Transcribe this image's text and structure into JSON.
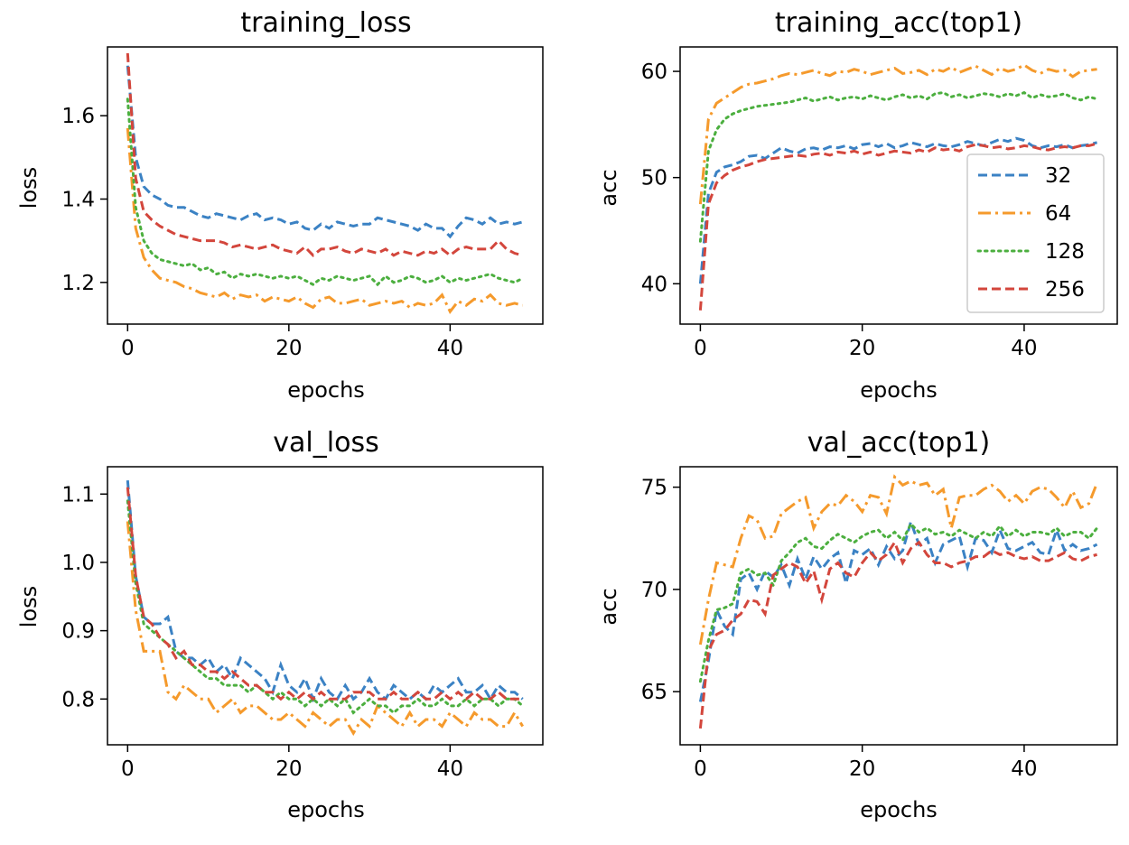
{
  "colors": {
    "32": "#3b82c4",
    "64": "#f59a2c",
    "128": "#4caf3f",
    "256": "#d3463c"
  },
  "chart_data": [
    {
      "type": "line",
      "title": "training_loss",
      "xlabel": "epochs",
      "ylabel": "loss",
      "xlim": [
        -2.5,
        51.5
      ],
      "ylim": [
        1.1,
        1.765
      ],
      "xticks": [
        0,
        20,
        40
      ],
      "yticks": [
        1.2,
        1.4,
        1.6
      ],
      "ytick_labels": [
        "1.2",
        "1.4",
        "1.6"
      ],
      "series": [
        {
          "key": "32",
          "style": "dashed",
          "values": [
            1.72,
            1.5,
            1.43,
            1.41,
            1.4,
            1.385,
            1.38,
            1.38,
            1.37,
            1.36,
            1.355,
            1.365,
            1.36,
            1.355,
            1.35,
            1.36,
            1.365,
            1.35,
            1.355,
            1.35,
            1.34,
            1.345,
            1.33,
            1.325,
            1.34,
            1.33,
            1.345,
            1.34,
            1.335,
            1.34,
            1.34,
            1.355,
            1.35,
            1.345,
            1.34,
            1.335,
            1.325,
            1.34,
            1.33,
            1.33,
            1.31,
            1.335,
            1.355,
            1.35,
            1.34,
            1.355,
            1.34,
            1.345,
            1.34,
            1.345
          ]
        },
        {
          "key": "64",
          "style": "dashdot",
          "values": [
            1.57,
            1.33,
            1.26,
            1.23,
            1.21,
            1.205,
            1.2,
            1.19,
            1.185,
            1.175,
            1.17,
            1.165,
            1.175,
            1.16,
            1.17,
            1.165,
            1.17,
            1.155,
            1.165,
            1.16,
            1.155,
            1.165,
            1.15,
            1.14,
            1.16,
            1.165,
            1.15,
            1.15,
            1.155,
            1.16,
            1.145,
            1.15,
            1.155,
            1.15,
            1.155,
            1.14,
            1.15,
            1.145,
            1.15,
            1.17,
            1.13,
            1.155,
            1.145,
            1.16,
            1.155,
            1.17,
            1.15,
            1.145,
            1.15,
            1.145
          ]
        },
        {
          "key": "128",
          "style": "dotted",
          "values": [
            1.64,
            1.38,
            1.3,
            1.27,
            1.255,
            1.25,
            1.245,
            1.24,
            1.245,
            1.23,
            1.235,
            1.22,
            1.225,
            1.21,
            1.22,
            1.215,
            1.22,
            1.215,
            1.21,
            1.215,
            1.21,
            1.215,
            1.205,
            1.195,
            1.21,
            1.205,
            1.215,
            1.21,
            1.205,
            1.21,
            1.215,
            1.195,
            1.215,
            1.2,
            1.205,
            1.215,
            1.21,
            1.2,
            1.205,
            1.215,
            1.2,
            1.21,
            1.205,
            1.21,
            1.215,
            1.22,
            1.21,
            1.205,
            1.2,
            1.21
          ]
        },
        {
          "key": "256",
          "style": "dashed",
          "values": [
            1.75,
            1.45,
            1.37,
            1.35,
            1.335,
            1.325,
            1.315,
            1.31,
            1.305,
            1.3,
            1.3,
            1.3,
            1.295,
            1.285,
            1.29,
            1.285,
            1.28,
            1.285,
            1.29,
            1.28,
            1.275,
            1.27,
            1.285,
            1.265,
            1.28,
            1.28,
            1.285,
            1.275,
            1.27,
            1.28,
            1.275,
            1.27,
            1.28,
            1.265,
            1.275,
            1.27,
            1.265,
            1.275,
            1.27,
            1.28,
            1.265,
            1.28,
            1.285,
            1.28,
            1.28,
            1.28,
            1.3,
            1.28,
            1.27,
            1.265
          ]
        }
      ]
    },
    {
      "type": "line",
      "title": "training_acc(top1)",
      "xlabel": "epochs",
      "ylabel": "acc",
      "xlim": [
        -2.5,
        51.5
      ],
      "ylim": [
        36.2,
        62.3
      ],
      "xticks": [
        0,
        20,
        40
      ],
      "yticks": [
        40,
        50,
        60
      ],
      "ytick_labels": [
        "40",
        "50",
        "60"
      ],
      "legend": {
        "position": "right",
        "entries": [
          "32",
          "64",
          "128",
          "256"
        ]
      },
      "series": [
        {
          "key": "32",
          "style": "dashed",
          "values": [
            40.0,
            48.5,
            50.5,
            51.0,
            51.2,
            51.5,
            52.0,
            52.1,
            51.8,
            52.3,
            52.8,
            52.5,
            52.3,
            52.7,
            52.8,
            52.6,
            52.9,
            52.8,
            53.0,
            52.7,
            53.1,
            53.2,
            52.9,
            53.2,
            52.8,
            53.0,
            53.3,
            53.1,
            52.9,
            53.2,
            53.0,
            52.9,
            53.1,
            53.4,
            53.2,
            53.0,
            53.3,
            53.6,
            53.4,
            53.7,
            53.5,
            53.0,
            52.8,
            53.0,
            52.9,
            53.1,
            52.8,
            53.0,
            53.1,
            53.3
          ]
        },
        {
          "key": "64",
          "style": "dashdot",
          "values": [
            47.5,
            55.5,
            57.0,
            57.5,
            58.0,
            58.5,
            58.8,
            58.9,
            59.1,
            59.3,
            59.6,
            59.8,
            59.7,
            59.9,
            60.1,
            59.8,
            59.6,
            60.0,
            59.9,
            60.2,
            60.0,
            59.7,
            59.9,
            60.1,
            60.3,
            59.8,
            59.9,
            60.1,
            59.7,
            60.2,
            60.0,
            60.4,
            59.9,
            60.2,
            60.5,
            60.1,
            59.7,
            60.3,
            60.0,
            60.2,
            60.6,
            60.1,
            59.8,
            60.2,
            60.0,
            60.1,
            59.5,
            60.0,
            60.1,
            60.2
          ]
        },
        {
          "key": "128",
          "style": "dotted",
          "values": [
            44.0,
            52.5,
            54.5,
            55.5,
            56.0,
            56.3,
            56.5,
            56.7,
            56.8,
            56.9,
            57.0,
            57.1,
            57.3,
            57.5,
            57.2,
            57.4,
            57.6,
            57.3,
            57.5,
            57.6,
            57.4,
            57.7,
            57.5,
            57.3,
            57.6,
            57.8,
            57.5,
            57.7,
            57.4,
            57.9,
            58.0,
            57.6,
            57.8,
            57.5,
            57.7,
            57.9,
            57.8,
            57.6,
            57.9,
            57.7,
            58.0,
            57.5,
            57.8,
            57.6,
            57.7,
            57.9,
            57.5,
            57.3,
            57.6,
            57.4
          ]
        },
        {
          "key": "256",
          "style": "dashed",
          "values": [
            37.5,
            47.5,
            49.5,
            50.2,
            50.7,
            51.0,
            51.2,
            51.5,
            51.7,
            51.8,
            51.9,
            52.0,
            52.1,
            52.0,
            52.2,
            52.3,
            52.1,
            52.4,
            52.3,
            52.5,
            52.2,
            52.4,
            52.1,
            52.3,
            52.5,
            52.4,
            52.3,
            52.6,
            52.4,
            52.8,
            52.6,
            52.7,
            52.5,
            52.9,
            53.1,
            53.0,
            52.8,
            52.9,
            52.7,
            52.8,
            53.0,
            52.9,
            52.7,
            52.6,
            52.8,
            52.9,
            52.8,
            53.0,
            53.0,
            53.2
          ]
        }
      ]
    },
    {
      "type": "line",
      "title": "val_loss",
      "xlabel": "epochs",
      "ylabel": "loss",
      "xlim": [
        -2.5,
        51.5
      ],
      "ylim": [
        0.733,
        1.14
      ],
      "xticks": [
        0,
        20,
        40
      ],
      "yticks": [
        0.8,
        0.9,
        1.0,
        1.1
      ],
      "ytick_labels": [
        "0.8",
        "0.9",
        "1.0",
        "1.1"
      ],
      "series": [
        {
          "key": "32",
          "style": "dashed",
          "values": [
            1.12,
            0.98,
            0.92,
            0.91,
            0.91,
            0.92,
            0.87,
            0.86,
            0.86,
            0.85,
            0.86,
            0.84,
            0.85,
            0.83,
            0.86,
            0.85,
            0.84,
            0.83,
            0.81,
            0.85,
            0.82,
            0.81,
            0.83,
            0.8,
            0.83,
            0.81,
            0.8,
            0.82,
            0.8,
            0.81,
            0.83,
            0.81,
            0.8,
            0.82,
            0.81,
            0.8,
            0.81,
            0.8,
            0.82,
            0.81,
            0.82,
            0.83,
            0.81,
            0.81,
            0.82,
            0.8,
            0.82,
            0.81,
            0.81,
            0.8
          ]
        },
        {
          "key": "64",
          "style": "dashdot",
          "values": [
            1.06,
            0.93,
            0.87,
            0.87,
            0.87,
            0.81,
            0.8,
            0.82,
            0.81,
            0.8,
            0.8,
            0.78,
            0.79,
            0.8,
            0.78,
            0.79,
            0.79,
            0.78,
            0.77,
            0.77,
            0.78,
            0.77,
            0.76,
            0.78,
            0.77,
            0.76,
            0.77,
            0.77,
            0.75,
            0.77,
            0.76,
            0.79,
            0.78,
            0.77,
            0.76,
            0.78,
            0.76,
            0.77,
            0.77,
            0.76,
            0.78,
            0.77,
            0.76,
            0.78,
            0.77,
            0.77,
            0.76,
            0.76,
            0.78,
            0.76
          ]
        },
        {
          "key": "128",
          "style": "dotted",
          "values": [
            1.09,
            0.97,
            0.91,
            0.9,
            0.89,
            0.88,
            0.87,
            0.86,
            0.85,
            0.84,
            0.83,
            0.83,
            0.82,
            0.82,
            0.82,
            0.81,
            0.82,
            0.81,
            0.8,
            0.81,
            0.8,
            0.8,
            0.79,
            0.8,
            0.79,
            0.8,
            0.79,
            0.8,
            0.78,
            0.79,
            0.8,
            0.79,
            0.79,
            0.78,
            0.79,
            0.79,
            0.8,
            0.79,
            0.79,
            0.8,
            0.79,
            0.79,
            0.8,
            0.79,
            0.8,
            0.8,
            0.79,
            0.8,
            0.8,
            0.79
          ]
        },
        {
          "key": "256",
          "style": "dashed",
          "values": [
            1.11,
            0.98,
            0.92,
            0.91,
            0.89,
            0.88,
            0.86,
            0.87,
            0.85,
            0.85,
            0.84,
            0.84,
            0.83,
            0.84,
            0.83,
            0.82,
            0.82,
            0.81,
            0.81,
            0.8,
            0.81,
            0.8,
            0.81,
            0.8,
            0.81,
            0.8,
            0.8,
            0.8,
            0.81,
            0.81,
            0.81,
            0.8,
            0.8,
            0.81,
            0.8,
            0.8,
            0.81,
            0.8,
            0.8,
            0.81,
            0.8,
            0.81,
            0.8,
            0.81,
            0.8,
            0.8,
            0.81,
            0.8,
            0.8,
            0.8
          ]
        }
      ]
    },
    {
      "type": "line",
      "title": "val_acc(top1)",
      "xlabel": "epochs",
      "ylabel": "acc",
      "xlim": [
        -2.5,
        51.5
      ],
      "ylim": [
        62.4,
        76.0
      ],
      "xticks": [
        0,
        20,
        40
      ],
      "yticks": [
        65,
        70,
        75
      ],
      "ytick_labels": [
        "65",
        "70",
        "75"
      ],
      "series": [
        {
          "key": "32",
          "style": "dashed",
          "values": [
            64.5,
            66.5,
            69.0,
            68.2,
            67.8,
            70.5,
            70.8,
            70.0,
            70.9,
            70.6,
            71.2,
            70.2,
            71.5,
            70.5,
            71.6,
            71.0,
            71.5,
            71.8,
            70.3,
            71.9,
            71.7,
            72.0,
            71.2,
            72.1,
            71.5,
            71.9,
            73.3,
            72.2,
            72.5,
            71.3,
            72.2,
            72.4,
            72.6,
            71.1,
            72.5,
            72.4,
            71.8,
            72.9,
            72.0,
            71.9,
            72.1,
            72.3,
            71.8,
            71.7,
            72.9,
            71.9,
            72.2,
            71.9,
            72.0,
            72.2
          ]
        },
        {
          "key": "64",
          "style": "dashdot",
          "values": [
            67.3,
            69.5,
            71.3,
            71.2,
            71.1,
            72.5,
            73.6,
            73.4,
            72.5,
            72.6,
            73.7,
            74.0,
            74.3,
            74.5,
            73.0,
            73.8,
            74.2,
            74.1,
            74.6,
            74.3,
            73.8,
            74.6,
            74.5,
            73.7,
            75.5,
            75.1,
            75.3,
            75.1,
            75.2,
            74.6,
            74.9,
            73.0,
            74.5,
            74.6,
            74.6,
            74.9,
            75.1,
            74.8,
            74.3,
            74.6,
            74.2,
            74.8,
            75.0,
            74.9,
            74.5,
            74.0,
            74.8,
            74.0,
            74.2,
            75.2
          ]
        },
        {
          "key": "128",
          "style": "dotted",
          "values": [
            65.5,
            67.5,
            69.0,
            69.1,
            69.3,
            70.8,
            71.0,
            70.7,
            70.8,
            70.2,
            71.4,
            71.8,
            72.3,
            72.5,
            72.1,
            72.0,
            72.4,
            72.7,
            72.5,
            72.3,
            72.6,
            72.8,
            72.9,
            72.5,
            72.8,
            72.4,
            73.2,
            72.8,
            73.0,
            72.7,
            72.8,
            72.6,
            72.9,
            72.7,
            72.5,
            72.8,
            72.6,
            73.1,
            72.6,
            72.9,
            72.6,
            72.8,
            72.8,
            72.7,
            73.0,
            72.6,
            72.8,
            72.8,
            72.5,
            73.0
          ]
        },
        {
          "key": "256",
          "style": "dashed",
          "values": [
            63.2,
            67.0,
            67.8,
            68.0,
            68.5,
            68.8,
            69.5,
            69.4,
            68.8,
            70.7,
            71.0,
            71.3,
            71.1,
            70.3,
            70.9,
            69.5,
            71.0,
            71.3,
            70.8,
            70.6,
            71.3,
            71.8,
            71.4,
            71.7,
            72.3,
            71.3,
            72.0,
            72.3,
            71.7,
            71.3,
            71.3,
            71.1,
            71.3,
            71.4,
            71.6,
            71.6,
            71.9,
            71.7,
            71.8,
            71.6,
            71.5,
            71.6,
            71.4,
            71.4,
            71.6,
            71.8,
            71.5,
            71.4,
            71.6,
            71.7
          ]
        }
      ]
    }
  ]
}
